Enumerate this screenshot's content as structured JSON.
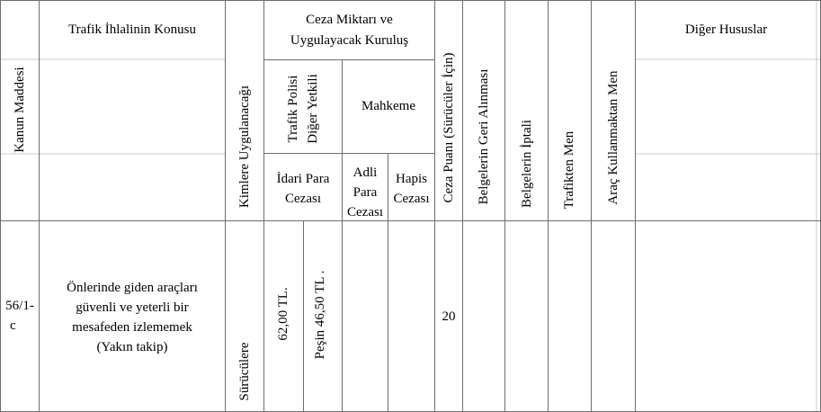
{
  "headers": {
    "kanun_maddesi": "Kanun Maddesi",
    "konu": "Trafik İhlalinin Konusu",
    "kimlere": "Kimlere Uygulanacağı",
    "ceza_miktari_line1": "Ceza Miktarı ve",
    "ceza_miktari_line2": "Uygulayacak Kuruluş",
    "trafik_polisi_line1": "Trafik Polisi",
    "trafik_polisi_line2": "Diğer Yetkili",
    "mahkeme": "Mahkeme",
    "idari_para_line1": "İdari Para",
    "idari_para_line2": "Cezası",
    "adli_line1": "Adli",
    "adli_line2": "Para",
    "adli_line3": "Cezası",
    "hapis_line1": "Hapis",
    "hapis_line2": "Cezası",
    "ceza_puani": "Ceza Puanı (Sürücüler İçin)",
    "belge_geri": "Belgelerin Geri Alınması",
    "belge_iptal": "Belgelerin İptali",
    "trafikten_men": "Trafikten Men",
    "arac_men": "Araç Kullanmaktan Men",
    "diger": "Diğer Hususlar"
  },
  "row": {
    "madde_line1": "56/1-",
    "madde_line2": "c",
    "konu_line1": "Önlerinde giden araçları",
    "konu_line2": "güvenli ve yeterli bir",
    "konu_line3": "mesafeden izlememek",
    "konu_line4": "(Yakın takip)",
    "kimlere": "Sürücülere",
    "idari_para": "62,00 TL.",
    "pesin": "Peşin 46,50 TL .",
    "ceza_puani": "20"
  }
}
